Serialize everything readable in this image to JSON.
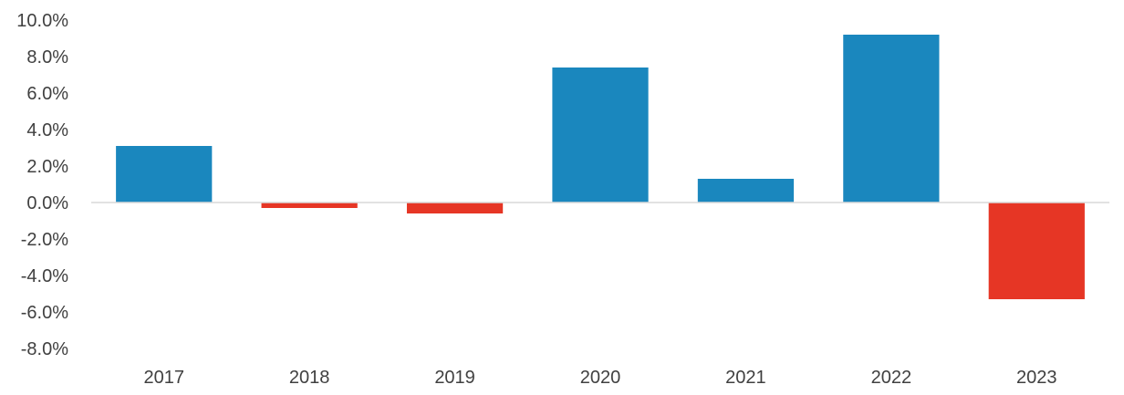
{
  "chart_data": {
    "type": "bar",
    "categories": [
      "2017",
      "2018",
      "2019",
      "2020",
      "2021",
      "2022",
      "2023"
    ],
    "values": [
      3.1,
      -0.3,
      -0.6,
      7.4,
      1.3,
      9.2,
      -5.3
    ],
    "ylim": [
      -8,
      10
    ],
    "yticks": [
      10,
      8,
      6,
      4,
      2,
      0,
      -2,
      -4,
      -6,
      -8
    ],
    "ytick_labels": [
      "10.0%",
      "8.0%",
      "6.0%",
      "4.0%",
      "2.0%",
      "0.0%",
      "-2.0%",
      "-4.0%",
      "-6.0%",
      "-8.0%"
    ],
    "grid": false,
    "legend": "none",
    "colors": {
      "positive": "#1a87be",
      "negative": "#e63625",
      "zero_line": "#d9d9d9",
      "text": "#404040"
    }
  }
}
